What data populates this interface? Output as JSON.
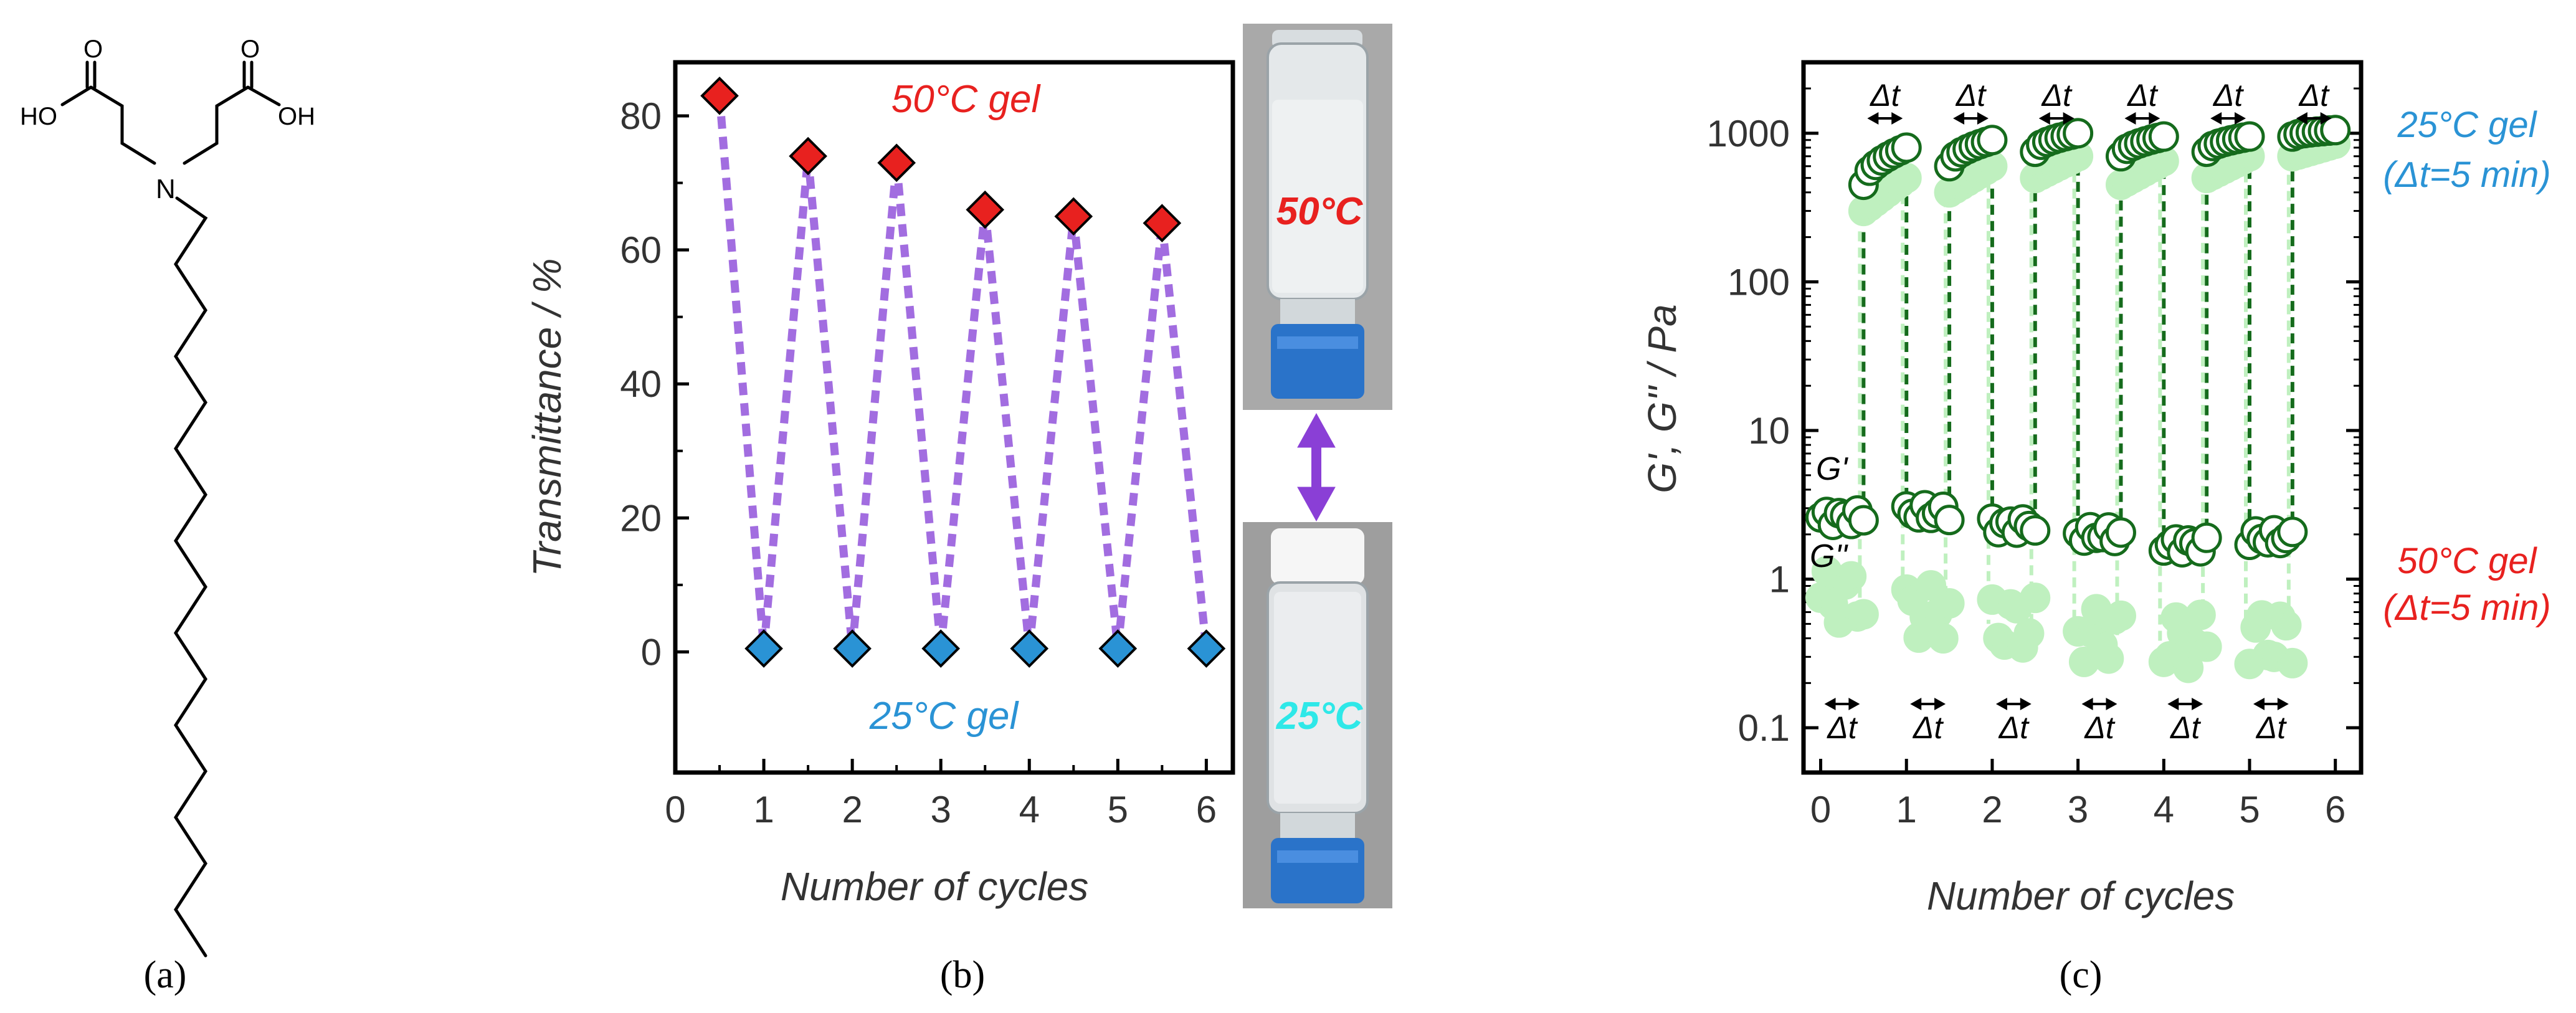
{
  "colors": {
    "red": "#e8211f",
    "blue": "#2a93d5",
    "purple": "#a26de0",
    "dark_green": "#156b1c",
    "light_green": "#bff0bf",
    "cyan": "#2ee8e8",
    "purple_arrow": "#8a3fd6"
  },
  "panel_a": {
    "label": "(a)",
    "atoms": {
      "ho_left": "HO",
      "ho_right": "OH",
      "o_left": "O",
      "o_right": "O",
      "n": "N"
    }
  },
  "panel_b_label": "(b)",
  "panel_c_label": "(c)",
  "photos": {
    "top_label": "50°C",
    "bottom_label": "25°C"
  },
  "chart_data": [
    {
      "type": "scatter",
      "panel": "b",
      "xlabel": "Number of cycles",
      "ylabel": "Transmittance / %",
      "xlim": [
        0,
        6.3
      ],
      "ylim": [
        -18,
        88
      ],
      "xticks": [
        "0",
        "1",
        "2",
        "3",
        "4",
        "5",
        "6"
      ],
      "yticks": [
        "0",
        "20",
        "40",
        "60",
        "80"
      ],
      "series": [
        {
          "name": "50°C gel",
          "marker": "diamond",
          "x": [
            0.5,
            1.5,
            2.5,
            3.5,
            4.5,
            5.5
          ],
          "y": [
            83,
            74,
            73,
            66,
            65,
            64
          ]
        },
        {
          "name": "25°C gel",
          "marker": "diamond",
          "x": [
            1,
            2,
            3,
            4,
            5,
            6
          ],
          "y": [
            0.5,
            0.5,
            0.5,
            0.5,
            0.5,
            0.5
          ]
        }
      ],
      "connector": "dotted zigzag"
    },
    {
      "type": "scatter",
      "panel": "c",
      "xlabel": "Number of cycles",
      "ylabel": "G', G'' / Pa",
      "yscale": "log",
      "xlim": [
        -0.2,
        6.3
      ],
      "ylim": [
        0.05,
        3000
      ],
      "xticks": [
        "0",
        "1",
        "2",
        "3",
        "4",
        "5",
        "6"
      ],
      "yticks": [
        "0.1",
        "1",
        "10",
        "100",
        "1000"
      ],
      "series": [
        {
          "name": "G'",
          "segments": [
            {
              "x0": 0,
              "x1": 0.5,
              "y": 2.6
            },
            {
              "x0": 1,
              "x1": 1.5,
              "y": 2.8
            },
            {
              "x0": 2,
              "x1": 2.5,
              "y": 2.3
            },
            {
              "x0": 3,
              "x1": 3.5,
              "y": 2.0
            },
            {
              "x0": 4,
              "x1": 4.5,
              "y": 1.7
            },
            {
              "x0": 5,
              "x1": 5.5,
              "y": 1.9
            }
          ]
        },
        {
          "name": "G''",
          "segments": [
            {
              "x0": 0,
              "x1": 0.5,
              "y": 0.75
            },
            {
              "x0": 1,
              "x1": 1.5,
              "y": 0.6
            },
            {
              "x0": 2,
              "x1": 2.5,
              "y": 0.5
            },
            {
              "x0": 3,
              "x1": 3.5,
              "y": 0.42
            },
            {
              "x0": 4,
              "x1": 4.5,
              "y": 0.38
            },
            {
              "x0": 5,
              "x1": 5.5,
              "y": 0.4
            }
          ]
        },
        {
          "name": "G' (25°C)",
          "segments": [
            {
              "x0": 0.5,
              "x1": 1,
              "y0": 450,
              "y1": 800
            },
            {
              "x0": 1.5,
              "x1": 2,
              "y0": 600,
              "y1": 900
            },
            {
              "x0": 2.5,
              "x1": 3,
              "y0": 750,
              "y1": 1000
            },
            {
              "x0": 3.5,
              "x1": 4,
              "y0": 700,
              "y1": 950
            },
            {
              "x0": 4.5,
              "x1": 5,
              "y0": 750,
              "y1": 950
            },
            {
              "x0": 5.5,
              "x1": 6,
              "y0": 950,
              "y1": 1050
            }
          ]
        },
        {
          "name": "G'' (25°C)",
          "segments": [
            {
              "x0": 0.5,
              "x1": 1,
              "y0": 300,
              "y1": 500
            },
            {
              "x0": 1.5,
              "x1": 2,
              "y0": 400,
              "y1": 600
            },
            {
              "x0": 2.5,
              "x1": 3,
              "y0": 500,
              "y1": 700
            },
            {
              "x0": 3.5,
              "x1": 4,
              "y0": 450,
              "y1": 650
            },
            {
              "x0": 4.5,
              "x1": 5,
              "y0": 500,
              "y1": 700
            },
            {
              "x0": 5.5,
              "x1": 6,
              "y0": 700,
              "y1": 850
            }
          ]
        }
      ],
      "dt_label": "Δt",
      "annotations": {
        "top_line1": "25°C gel",
        "top_line2": "(Δt=5 min)",
        "bottom_line1": "50°C gel",
        "bottom_line2": "(Δt=5 min)",
        "g_prime": "G'",
        "g_double_prime": "G''"
      }
    }
  ]
}
